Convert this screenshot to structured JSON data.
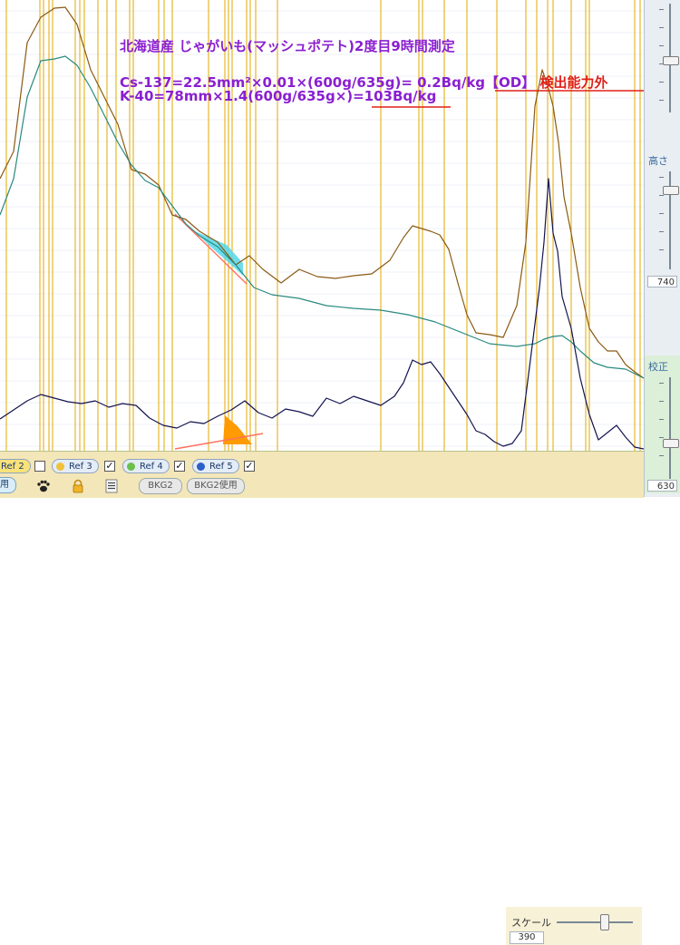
{
  "annotation": {
    "title": "北海道産 じゃがいも(マッシュポテト)2度目9時間測定",
    "cs_formula": "Cs-137=22.5mm²×0.01×(600g/635g)= 0.2Bq/kg【OD】 ",
    "cs_result": "検出能力外",
    "k_formula": "K-40=78mm×1.4(600g/635g×)=103Bq/kg"
  },
  "right_panel": {
    "height_label": "高さ",
    "height_value": "740",
    "calib_label": "校正",
    "calib_value": "630"
  },
  "bottom_bar": {
    "ref2_label": "Ref 2",
    "ref3_label": "Ref 3",
    "ref4_label": "Ref 4",
    "ref5_label": "Ref 5",
    "left_cut_label": "用",
    "bkg2_label": "BKG2",
    "bkg2_use_label": "BKG2使用",
    "scale_label": "スケール",
    "scale_value": "390",
    "icons": [
      "paw-icon",
      "lock-icon",
      "list-icon"
    ]
  },
  "colors": {
    "brown_series": "#8a5a14",
    "teal_series": "#2a8a80",
    "navy_series": "#141450",
    "gridline": "#e0a800",
    "annotation_purple": "#8a1fd0",
    "annotation_red": "#e0201a",
    "cs_fill": "#55d6e8",
    "k_fill": "#ff9a00"
  },
  "chart_data": {
    "type": "line",
    "title": "",
    "xlabel": "",
    "ylabel": "",
    "grid": true,
    "xlim": [
      0,
      710
    ],
    "ylim": [
      0,
      497
    ],
    "series": [
      {
        "x": [
          0,
          15,
          30,
          45,
          60,
          72,
          85,
          100,
          115,
          130,
          145,
          160,
          175,
          190,
          205,
          220,
          240,
          260,
          275,
          290,
          310,
          330,
          350,
          370,
          390,
          410,
          430,
          445,
          455,
          465,
          475,
          485,
          495,
          505,
          515,
          525,
          540,
          555,
          570,
          580,
          590,
          598,
          604,
          610,
          616,
          622,
          630,
          640,
          650,
          660,
          670,
          680,
          690,
          700,
          710
        ],
        "values": [
          300,
          330,
          450,
          478,
          488,
          489,
          470,
          420,
          390,
          360,
          310,
          305,
          293,
          260,
          255,
          242,
          230,
          205,
          215,
          200,
          185,
          200,
          192,
          190,
          193,
          195,
          210,
          235,
          248,
          245,
          242,
          238,
          222,
          185,
          150,
          130,
          128,
          125,
          160,
          230,
          380,
          420,
          403,
          380,
          340,
          280,
          240,
          180,
          135,
          120,
          110,
          110,
          95,
          87,
          80
        ]
      },
      {
        "x": [
          0,
          15,
          30,
          45,
          60,
          72,
          85,
          100,
          115,
          130,
          145,
          160,
          175,
          190,
          205,
          220,
          240,
          260,
          280,
          300,
          330,
          360,
          390,
          420,
          450,
          480,
          510,
          540,
          570,
          590,
          600,
          610,
          620,
          630,
          640,
          655,
          670,
          690,
          710
        ],
        "values": [
          260,
          300,
          390,
          430,
          432,
          435,
          425,
          400,
          370,
          340,
          315,
          298,
          290,
          270,
          250,
          237,
          225,
          205,
          180,
          172,
          168,
          160,
          157,
          155,
          150,
          142,
          130,
          118,
          115,
          118,
          123,
          126,
          127,
          120,
          110,
          97,
          92,
          90,
          80
        ]
      },
      {
        "x": [
          0,
          15,
          30,
          45,
          60,
          75,
          90,
          105,
          120,
          135,
          150,
          165,
          180,
          195,
          210,
          225,
          240,
          255,
          270,
          285,
          300,
          315,
          330,
          345,
          360,
          375,
          390,
          405,
          420,
          435,
          445,
          455,
          465,
          475,
          485,
          495,
          505,
          515,
          525,
          535,
          545,
          555,
          565,
          575,
          585,
          595,
          600,
          605,
          610,
          615,
          620,
          630,
          640,
          650,
          660,
          670,
          680,
          690,
          700,
          710
        ],
        "values": [
          35,
          45,
          55,
          62,
          58,
          54,
          52,
          55,
          48,
          52,
          50,
          36,
          28,
          25,
          32,
          30,
          38,
          45,
          55,
          42,
          36,
          46,
          43,
          38,
          58,
          52,
          60,
          55,
          50,
          60,
          75,
          100,
          95,
          98,
          85,
          70,
          55,
          40,
          22,
          18,
          10,
          5,
          8,
          22,
          100,
          180,
          230,
          300,
          240,
          220,
          170,
          135,
          80,
          40,
          12,
          20,
          28,
          15,
          4,
          2
        ]
      }
    ],
    "gridline_x": [
      7,
      44,
      48,
      54,
      58,
      83,
      88,
      93,
      108,
      118,
      128,
      143,
      147,
      175,
      181,
      190,
      230,
      248,
      252,
      256,
      272,
      276,
      282,
      306,
      420,
      462,
      466,
      490,
      515,
      548,
      580,
      592,
      604,
      610,
      630,
      646,
      650,
      700,
      706
    ],
    "annotations": [
      "cs-peak-triangle",
      "k-peak-triangle"
    ]
  }
}
